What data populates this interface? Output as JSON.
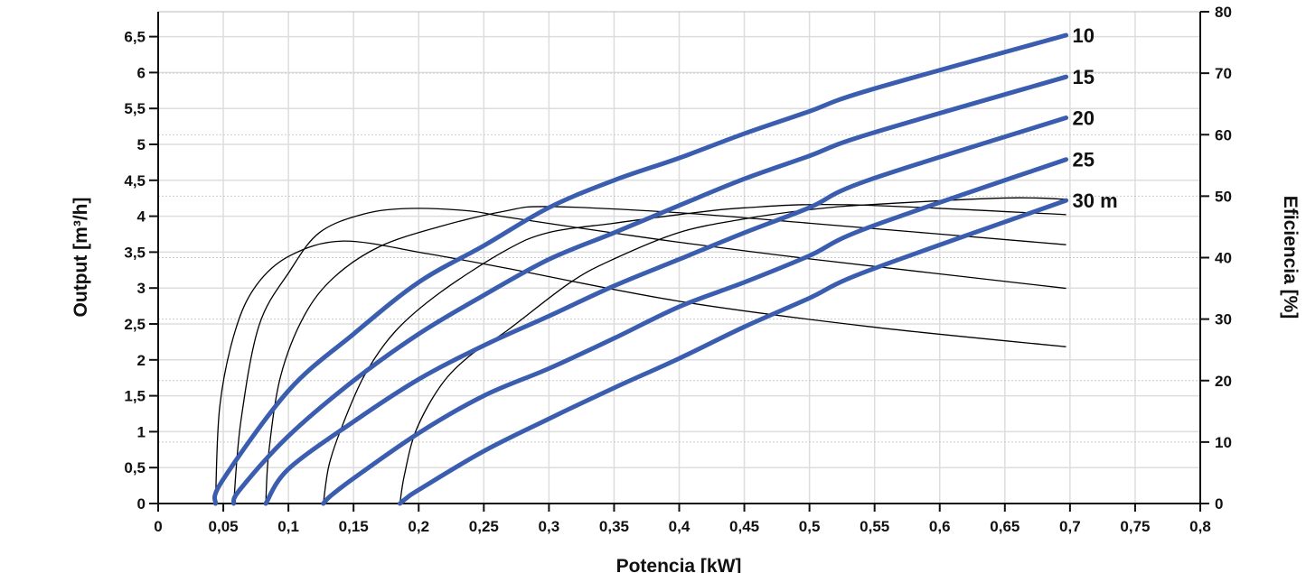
{
  "chart_data": {
    "type": "line",
    "xlabel": "Potencia [kW]",
    "ylabel": "Output [m³/h]",
    "y2label": "Eficiencia [%]",
    "xlim": [
      0,
      0.8
    ],
    "ylim": [
      0,
      6.85
    ],
    "y2lim": [
      0,
      80
    ],
    "grid": true,
    "x_ticks": [
      "0",
      "0,05",
      "0,1",
      "0,15",
      "0,2",
      "0,25",
      "0,3",
      "0,35",
      "0,4",
      "0,45",
      "0,5",
      "0,55",
      "0,6",
      "0,65",
      "0,7",
      "0,75",
      "0,8"
    ],
    "y_ticks": [
      "0",
      "0,5",
      "1",
      "1,5",
      "2",
      "2,5",
      "3",
      "3,5",
      "4",
      "4,5",
      "5",
      "5,5",
      "6",
      "6,5"
    ],
    "y2_ticks": [
      "0",
      "10",
      "20",
      "30",
      "40",
      "50",
      "60",
      "70",
      "80"
    ],
    "colors": {
      "output": "#3a5daf",
      "efficiency": "#000000",
      "grid": "#dddddd"
    },
    "output_series": [
      {
        "label": "10",
        "points": [
          [
            0.044,
            0
          ],
          [
            0.049,
            0.31
          ],
          [
            0.1,
            1.57
          ],
          [
            0.15,
            2.36
          ],
          [
            0.2,
            3.08
          ],
          [
            0.25,
            3.59
          ],
          [
            0.3,
            4.12
          ],
          [
            0.35,
            4.5
          ],
          [
            0.4,
            4.81
          ],
          [
            0.45,
            5.15
          ],
          [
            0.5,
            5.46
          ],
          [
            0.545,
            5.75
          ],
          [
            0.697,
            6.52
          ]
        ]
      },
      {
        "label": "15",
        "points": [
          [
            0.058,
            0
          ],
          [
            0.0626,
            0.19
          ],
          [
            0.1,
            0.94
          ],
          [
            0.15,
            1.71
          ],
          [
            0.2,
            2.36
          ],
          [
            0.25,
            2.9
          ],
          [
            0.3,
            3.4
          ],
          [
            0.35,
            3.77
          ],
          [
            0.4,
            4.15
          ],
          [
            0.45,
            4.52
          ],
          [
            0.5,
            4.84
          ],
          [
            0.545,
            5.14
          ],
          [
            0.697,
            5.94
          ]
        ]
      },
      {
        "label": "20",
        "points": [
          [
            0.0826,
            0
          ],
          [
            0.1,
            0.48
          ],
          [
            0.15,
            1.14
          ],
          [
            0.2,
            1.73
          ],
          [
            0.25,
            2.2
          ],
          [
            0.3,
            2.61
          ],
          [
            0.35,
            3.03
          ],
          [
            0.4,
            3.4
          ],
          [
            0.45,
            3.77
          ],
          [
            0.5,
            4.12
          ],
          [
            0.545,
            4.5
          ],
          [
            0.697,
            5.37
          ]
        ]
      },
      {
        "label": "25",
        "points": [
          [
            0.1268,
            0
          ],
          [
            0.132,
            0.1
          ],
          [
            0.15,
            0.35
          ],
          [
            0.2,
            0.98
          ],
          [
            0.25,
            1.5
          ],
          [
            0.3,
            1.88
          ],
          [
            0.35,
            2.3
          ],
          [
            0.4,
            2.74
          ],
          [
            0.45,
            3.08
          ],
          [
            0.5,
            3.45
          ],
          [
            0.545,
            3.84
          ],
          [
            0.697,
            4.79
          ]
        ]
      },
      {
        "label": "30 m",
        "points": [
          [
            0.1856,
            0
          ],
          [
            0.191,
            0.08
          ],
          [
            0.2,
            0.19
          ],
          [
            0.25,
            0.73
          ],
          [
            0.3,
            1.18
          ],
          [
            0.35,
            1.61
          ],
          [
            0.4,
            2.02
          ],
          [
            0.45,
            2.46
          ],
          [
            0.5,
            2.86
          ],
          [
            0.545,
            3.24
          ],
          [
            0.697,
            4.22
          ]
        ]
      }
    ],
    "efficiency_series": [
      {
        "points": [
          [
            0.044,
            0
          ],
          [
            0.0473,
            15.8
          ],
          [
            0.059,
            28
          ],
          [
            0.075,
            35.4
          ],
          [
            0.101,
            40.3
          ],
          [
            0.142,
            42.7
          ],
          [
            0.205,
            40.7
          ],
          [
            0.267,
            38.3
          ],
          [
            0.4,
            32.9
          ],
          [
            0.545,
            28.8
          ],
          [
            0.697,
            25.5
          ]
        ]
      },
      {
        "points": [
          [
            0.058,
            0
          ],
          [
            0.0635,
            13.4
          ],
          [
            0.0775,
            29
          ],
          [
            0.101,
            37.8
          ],
          [
            0.124,
            44.1
          ],
          [
            0.158,
            47.1
          ],
          [
            0.193,
            48
          ],
          [
            0.239,
            47.6
          ],
          [
            0.267,
            46.6
          ],
          [
            0.35,
            44
          ],
          [
            0.4,
            42.5
          ],
          [
            0.5,
            39.8
          ],
          [
            0.697,
            35
          ]
        ]
      },
      {
        "points": [
          [
            0.0826,
            0
          ],
          [
            0.085,
            8.5
          ],
          [
            0.094,
            20.7
          ],
          [
            0.112,
            30.5
          ],
          [
            0.135,
            36.8
          ],
          [
            0.17,
            41.8
          ],
          [
            0.217,
            45.1
          ],
          [
            0.267,
            47.6
          ],
          [
            0.3,
            48.3
          ],
          [
            0.4,
            47.3
          ],
          [
            0.5,
            45.6
          ],
          [
            0.697,
            42.1
          ]
        ]
      },
      {
        "points": [
          [
            0.1268,
            0
          ],
          [
            0.131,
            6.1
          ],
          [
            0.14,
            11.9
          ],
          [
            0.158,
            20.7
          ],
          [
            0.182,
            28
          ],
          [
            0.217,
            34.4
          ],
          [
            0.267,
            41.2
          ],
          [
            0.3,
            44.1
          ],
          [
            0.35,
            45.6
          ],
          [
            0.4,
            47
          ],
          [
            0.45,
            48.1
          ],
          [
            0.53,
            48.6
          ],
          [
            0.697,
            47
          ]
        ]
      },
      {
        "points": [
          [
            0.1856,
            0
          ],
          [
            0.189,
            4.6
          ],
          [
            0.198,
            11.9
          ],
          [
            0.217,
            19.2
          ],
          [
            0.239,
            24
          ],
          [
            0.267,
            28
          ],
          [
            0.316,
            35.9
          ],
          [
            0.35,
            39.8
          ],
          [
            0.4,
            44.1
          ],
          [
            0.45,
            46.3
          ],
          [
            0.5,
            47.8
          ],
          [
            0.545,
            48.6
          ],
          [
            0.65,
            49.7
          ],
          [
            0.697,
            49.5
          ]
        ]
      }
    ]
  }
}
